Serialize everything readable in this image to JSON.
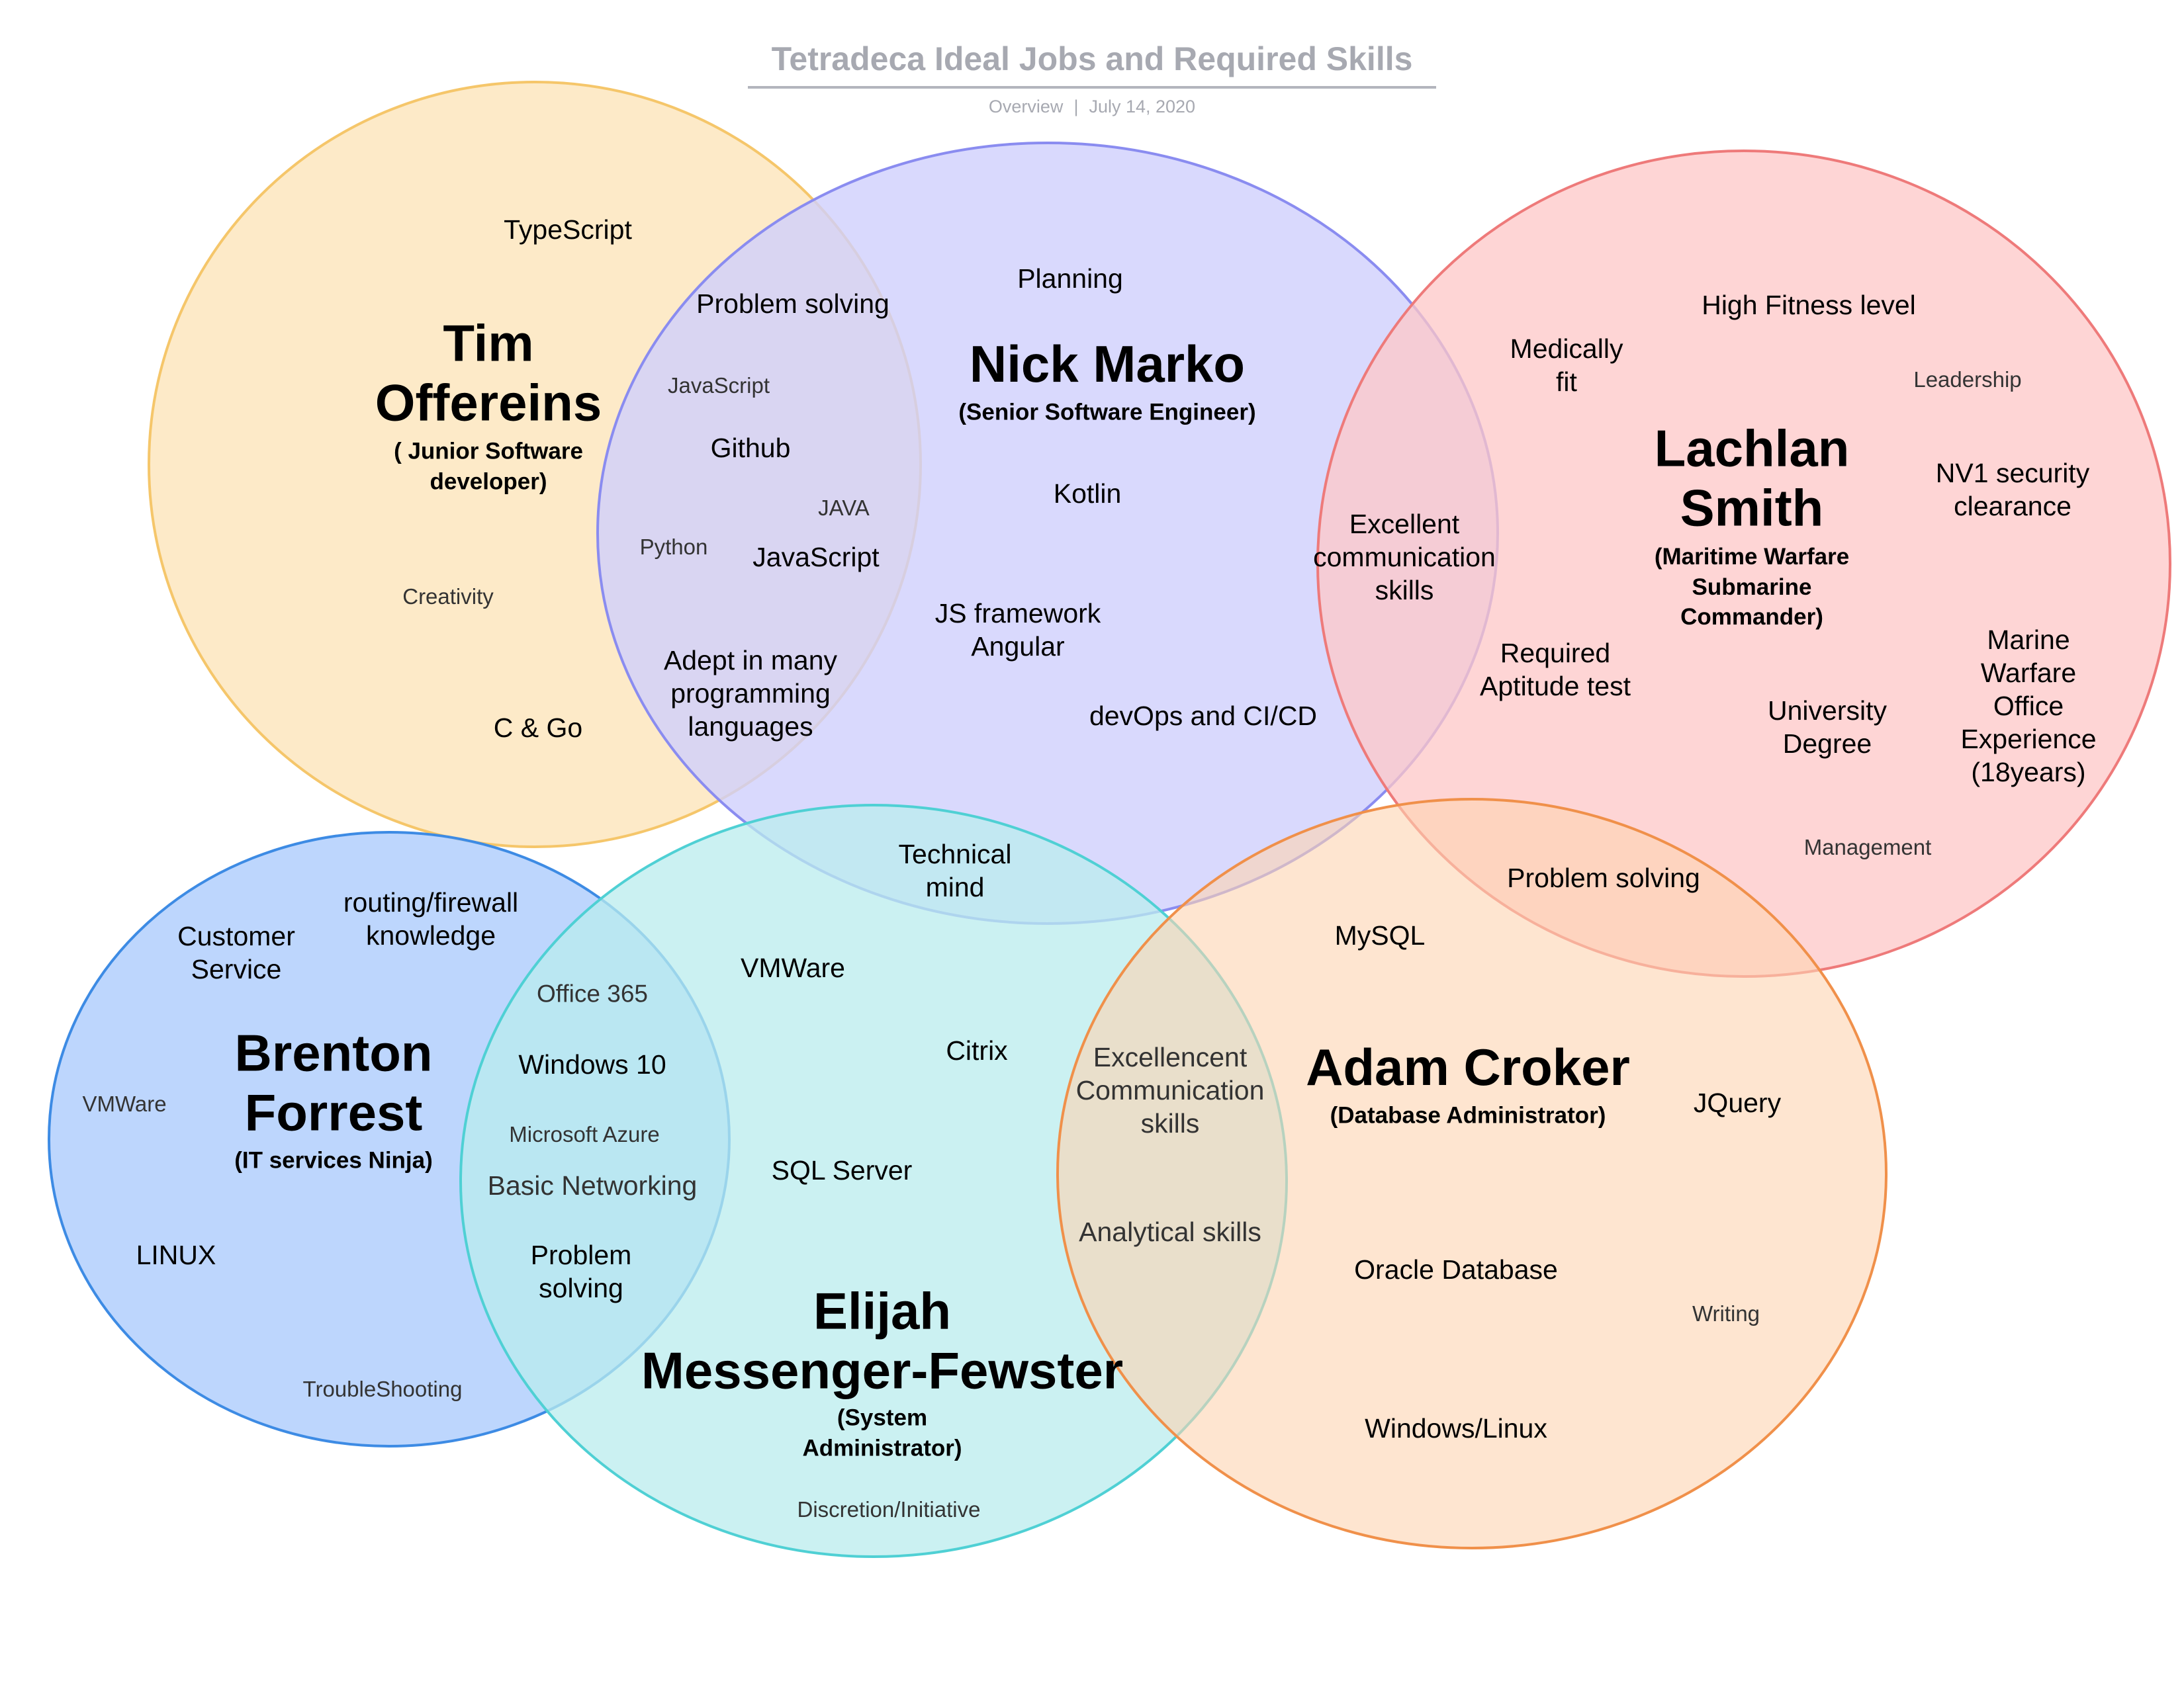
{
  "header": {
    "title": "Tetradeca Ideal Jobs and Required Skills",
    "subtitle_left": "Overview",
    "subtitle_sep": "|",
    "subtitle_date": "July 14, 2020"
  },
  "colors": {
    "tim": "#fde9c5",
    "nick": "#cfd0fd",
    "lachlan": "#fdc7c7",
    "brenton": "#b1cffd",
    "elijah": "#b9ecee",
    "adam": "#fdd3b0"
  },
  "people": {
    "tim": {
      "name": "Tim\nOffereins",
      "role": "( Junior Software\ndeveloper)"
    },
    "nick": {
      "name": "Nick Marko",
      "role": "(Senior Software Engineer)"
    },
    "lachlan": {
      "name": "Lachlan\nSmith",
      "role": "(Maritime Warfare\nSubmarine\nCommander)"
    },
    "brenton": {
      "name": "Brenton\nForrest",
      "role": "(IT services Ninja)"
    },
    "elijah": {
      "name": "Elijah\nMessenger-Fewster",
      "role": "(System\nAdministrator)"
    },
    "adam": {
      "name": "Adam Croker",
      "role": "(Database Administrator)"
    }
  },
  "skills": {
    "typescript": "TypeScript",
    "problem_solving_tn": "Problem solving",
    "javascript_small": "JavaScript",
    "github": "Github",
    "java": "JAVA",
    "python": "Python",
    "javascript": "JavaScript",
    "creativity": "Creativity",
    "adept": "Adept in many\nprogramming\nlanguages",
    "c_go": "C & Go",
    "planning": "Planning",
    "kotlin": "Kotlin",
    "js_framework": "JS framework\nAngular",
    "devops": "devOps and CI/CD",
    "excellent_comm": "Excellent\ncommunication\nskills",
    "medically_fit": "Medically\nfit",
    "high_fitness": "High Fitness level",
    "leadership": "Leadership",
    "nv1": "NV1 security\nclearance",
    "aptitude": "Required\nAptitude test",
    "university": "University\nDegree",
    "marine": "Marine\nWarfare\nOffice\nExperience\n(18years)",
    "management": "Management",
    "problem_solving_la": "Problem solving",
    "technical_mind": "Technical\nmind",
    "customer_service": "Customer\nService",
    "routing": "routing/firewall\nknowledge",
    "vmware_small": "VMWare",
    "linux": "LINUX",
    "troubleshooting": "TroubleShooting",
    "office365": "Office 365",
    "windows10": "Windows 10",
    "azure": "Microsoft Azure",
    "basic_networking": "Basic Networking",
    "problem_solving_be": "Problem\nsolving",
    "vmware": "VMWare",
    "citrix": "Citrix",
    "sql_server": "SQL Server",
    "discretion": "Discretion/Initiative",
    "excellencent_comm": "Excellencent\nCommunication\nskills",
    "analytical": "Analytical skills",
    "mysql": "MySQL",
    "jquery": "JQuery",
    "oracle": "Oracle Database",
    "writing": "Writing",
    "windows_linux": "Windows/Linux"
  }
}
